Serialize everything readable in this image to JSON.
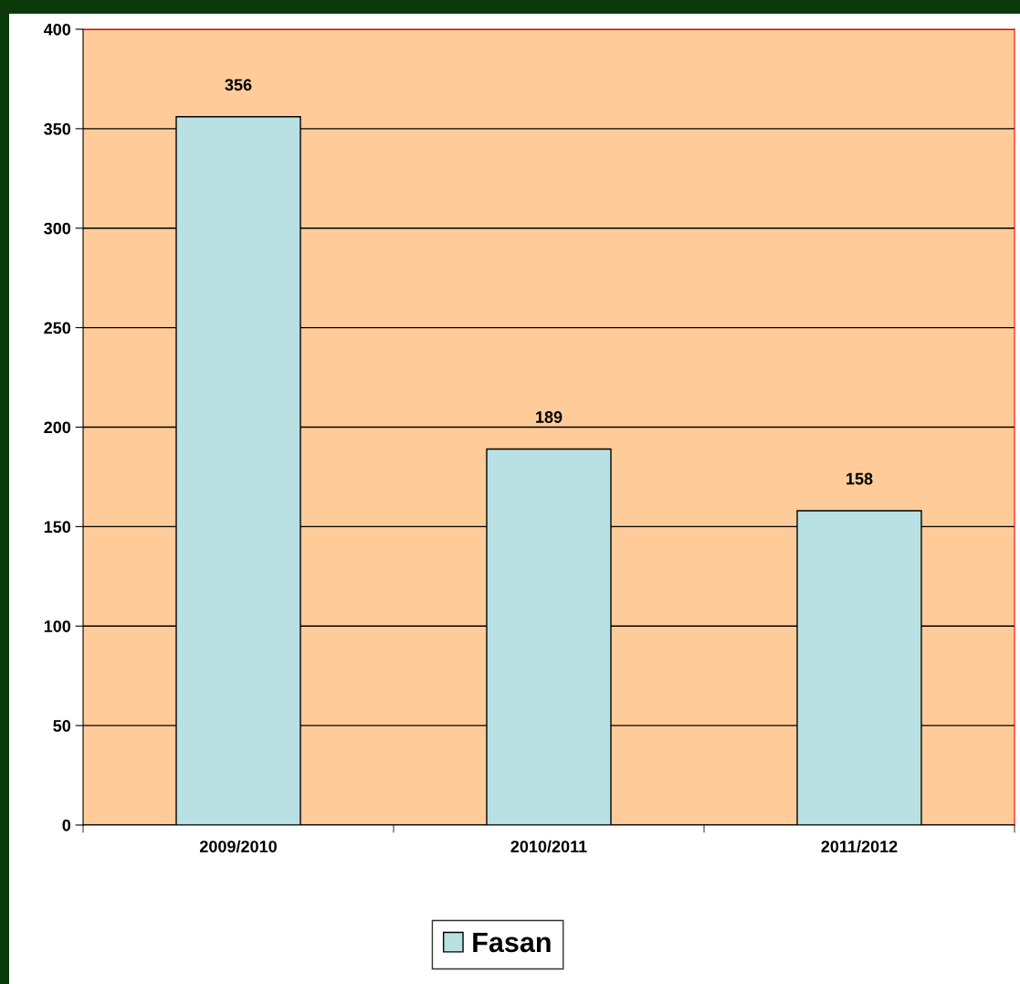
{
  "chart_data": {
    "type": "bar",
    "categories": [
      "2009/2010",
      "2010/2011",
      "2011/2012"
    ],
    "series": [
      {
        "name": "Fasan",
        "color": "#b9e0e3",
        "values": [
          356,
          189,
          158
        ]
      }
    ],
    "ylim": [
      0,
      400
    ],
    "yticks": [
      0,
      50,
      100,
      150,
      200,
      250,
      300,
      350,
      400
    ],
    "grid": "y",
    "legend": "bottom",
    "data_labels": true
  }
}
